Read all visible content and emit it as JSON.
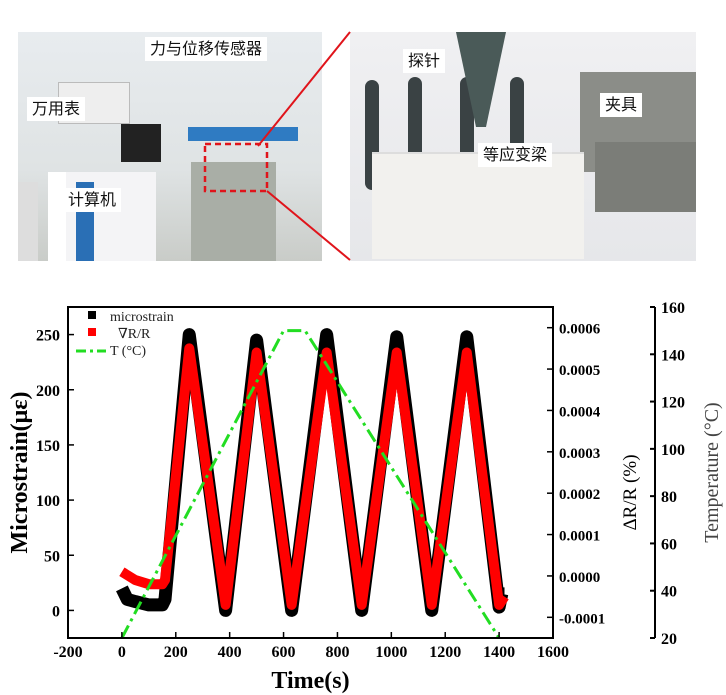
{
  "photos": {
    "left_labels": [
      "力与位移传感器",
      "万用表",
      "计算机"
    ],
    "right_labels": [
      "探针",
      "夹具",
      "等应变梁"
    ],
    "callout_color": "#e0141b"
  },
  "chart_data": {
    "type": "line",
    "xlabel": "Time(s)",
    "ylabel": "Microstrain(με)",
    "y2label": "ΔR/R (%)",
    "y3label": "Temperature (°C)",
    "xlim": [
      -200,
      1600
    ],
    "ylim": [
      -25,
      275
    ],
    "y2lim": [
      -0.00015,
      0.00065
    ],
    "y3lim": [
      20,
      160
    ],
    "xticks": [
      "-200",
      "0",
      "200",
      "400",
      "600",
      "800",
      "1000",
      "1200",
      "1400",
      "1600"
    ],
    "yticks": [
      "0",
      "50",
      "100",
      "150",
      "200",
      "250"
    ],
    "y2ticks": [
      "-0.0001",
      "0.0000",
      "0.0001",
      "0.0002",
      "0.0003",
      "0.0004",
      "0.0005",
      "0.0006"
    ],
    "y3ticks": [
      "20",
      "40",
      "60",
      "80",
      "100",
      "120",
      "140",
      "160"
    ],
    "grid": false,
    "legend_position": "top-left",
    "series": [
      {
        "name": "microstrain",
        "axis": "left",
        "color": "#000000",
        "style": "square-markers",
        "x": [
          0,
          20,
          50,
          100,
          150,
          160,
          250,
          385,
          500,
          630,
          760,
          890,
          1020,
          1150,
          1280,
          1400,
          1410,
          1420
        ],
        "y": [
          20,
          10,
          8,
          5,
          5,
          10,
          250,
          0,
          245,
          0,
          250,
          0,
          248,
          0,
          248,
          3,
          15,
          15
        ]
      },
      {
        "name": "∇R/R",
        "axis": "right",
        "color": "#ff0000",
        "style": "square-markers",
        "x": [
          0,
          50,
          100,
          150,
          160,
          250,
          385,
          500,
          630,
          760,
          890,
          1020,
          1150,
          1280,
          1400,
          1420
        ],
        "y": [
          1e-05,
          -1e-05,
          -2e-05,
          -2e-05,
          -1e-05,
          0.00055,
          -7e-05,
          0.00054,
          -7e-05,
          0.00054,
          -7e-05,
          0.00054,
          -7e-05,
          0.00054,
          -7e-05,
          -5e-05
        ]
      },
      {
        "name": "T (°C)",
        "axis": "temperature",
        "color": "#22dd22",
        "style": "dash-dot",
        "x": [
          0,
          600,
          680,
          1400
        ],
        "y": [
          20,
          150,
          150,
          20
        ]
      }
    ]
  }
}
